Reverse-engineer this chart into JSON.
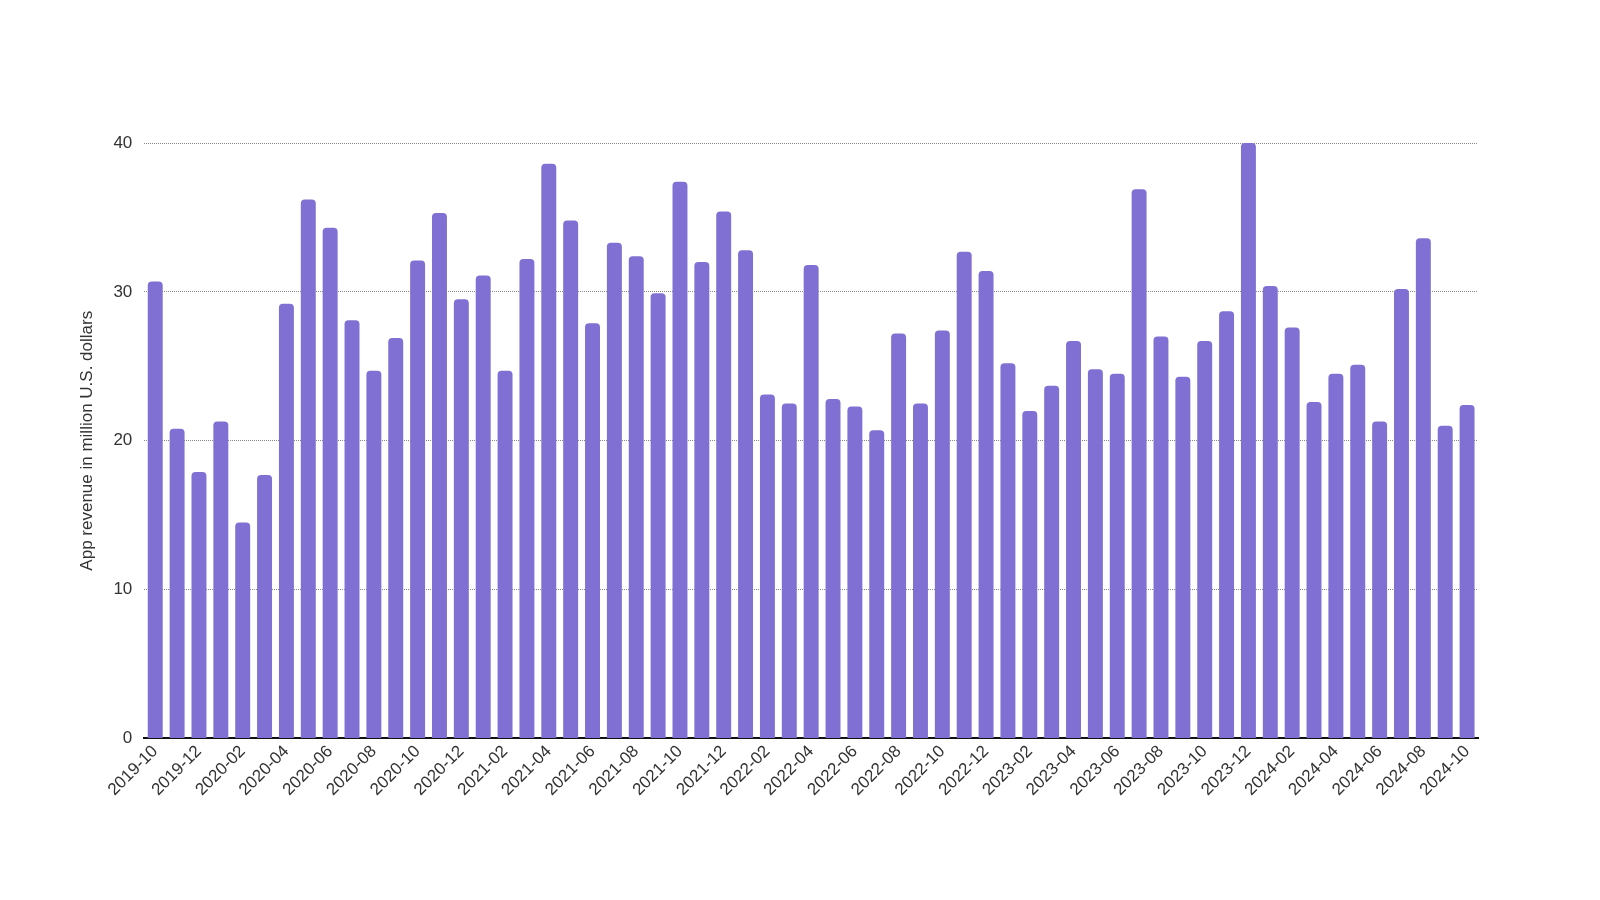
{
  "chart_data": {
    "type": "bar",
    "ylabel": "App revenue in million U.S. dollars",
    "categories": [
      "2019-10",
      null,
      "2019-12",
      null,
      "2020-02",
      null,
      "2020-04",
      null,
      "2020-06",
      null,
      "2020-08",
      null,
      "2020-10",
      null,
      "2020-12",
      null,
      "2021-02",
      null,
      "2021-04",
      null,
      "2021-06",
      null,
      "2021-08",
      null,
      "2021-10",
      null,
      "2021-12",
      null,
      "2022-02",
      null,
      "2022-04",
      null,
      "2022-06",
      null,
      "2022-08",
      null,
      "2022-10",
      null,
      "2022-12",
      null,
      "2023-02",
      null,
      "2023-04",
      null,
      "2023-06",
      null,
      "2023-08",
      null,
      "2023-10",
      null,
      "2023-12",
      null,
      "2024-02",
      null,
      "2024-04",
      null,
      "2024-06",
      null,
      "2024-08",
      null,
      "2024-10"
    ],
    "values": [
      30.7,
      20.8,
      17.9,
      21.3,
      14.5,
      17.7,
      29.2,
      36.2,
      34.3,
      28.1,
      24.7,
      26.9,
      32.1,
      35.3,
      29.5,
      31.1,
      24.7,
      32.2,
      38.6,
      34.8,
      27.9,
      33.3,
      32.4,
      29.9,
      37.4,
      32.0,
      35.4,
      32.8,
      23.1,
      22.5,
      31.8,
      22.8,
      22.3,
      20.7,
      27.2,
      22.5,
      27.4,
      32.7,
      31.4,
      25.2,
      22.0,
      23.7,
      26.7,
      24.8,
      24.5,
      36.9,
      27.0,
      24.3,
      26.7,
      28.7,
      40.0,
      30.4,
      27.6,
      22.6,
      24.5,
      25.1,
      21.3,
      30.2,
      33.6,
      21.0,
      22.4
    ],
    "color": "#8170d3",
    "ylim": [
      0,
      40
    ],
    "yticks": [
      0,
      10,
      20,
      30,
      40
    ],
    "grid": "y"
  }
}
